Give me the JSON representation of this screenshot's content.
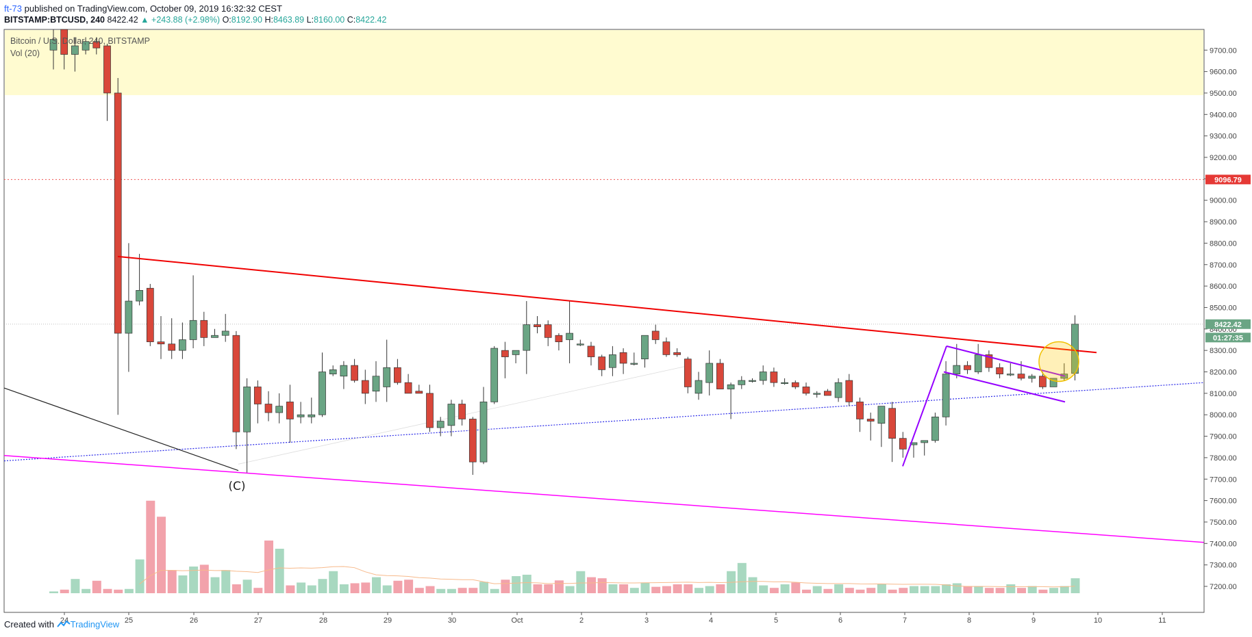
{
  "header": {
    "author": "ft-73",
    "published": " published on TradingView.com, October 09, 2019 16:32:32 CEST"
  },
  "quote": {
    "symbol": "BITSTAMP:BTCUSD, 240",
    "last": "8422.42",
    "change": "▲ +243.88 (+2.98%)",
    "o_label": "O:",
    "o": "8192.90",
    "h_label": "H:",
    "h": "8463.89",
    "l_label": "L:",
    "l": "8160.00",
    "c_label": "C:",
    "c": "8422.42"
  },
  "legend": {
    "title": "Bitcoin / U.S. Dollar, 240, BITSTAMP",
    "volume": "Vol (20)"
  },
  "footer": {
    "created": "Created with",
    "brand": "TradingView"
  },
  "colors": {
    "up": "#6aa584",
    "down": "#d9473a",
    "vol_up": "#a8d8c0",
    "vol_down": "#f2a2ab",
    "resistance_zone": "#fffbd0",
    "trend_red": "#f00000",
    "channel_magenta": "#ff00ff",
    "flag_purple": "#9500ff",
    "dotted_blue": "#2a2ae8"
  },
  "chart_data": {
    "type": "candlestick",
    "ylim": [
      7150,
      9800
    ],
    "y_ticks": [
      "7200.00",
      "7300.00",
      "7400.00",
      "7500.00",
      "7600.00",
      "7700.00",
      "7800.00",
      "7900.00",
      "8000.00",
      "8100.00",
      "8200.00",
      "8300.00",
      "8400.00",
      "8500.00",
      "8600.00",
      "8700.00",
      "8800.00",
      "8900.00",
      "9000.00",
      "9100.00",
      "9200.00",
      "9300.00",
      "9400.00",
      "9500.00",
      "9600.00",
      "9700.00"
    ],
    "x_ticks": [
      "24",
      "25",
      "26",
      "27",
      "28",
      "29",
      "30",
      "Oct",
      "2",
      "3",
      "4",
      "5",
      "6",
      "7",
      "8",
      "9",
      "10",
      "11"
    ],
    "price_labels": {
      "last": "8422.42",
      "countdown": "01:27:35",
      "alert": "9096.79"
    },
    "alert_level": 9096.79,
    "resistance_zone": [
      9490,
      9800
    ],
    "annotation": "(C)",
    "candles": [
      {
        "o": 9700,
        "h": 9830,
        "l": 9610,
        "c": 9750
      },
      {
        "o": 9820,
        "h": 9870,
        "l": 9610,
        "c": 9680
      },
      {
        "o": 9680,
        "h": 9760,
        "l": 9600,
        "c": 9720
      },
      {
        "o": 9700,
        "h": 9760,
        "l": 9680,
        "c": 9740
      },
      {
        "o": 9740,
        "h": 9760,
        "l": 9680,
        "c": 9710
      },
      {
        "o": 9720,
        "h": 9730,
        "l": 9370,
        "c": 9500
      },
      {
        "o": 9500,
        "h": 9570,
        "l": 8000,
        "c": 8380
      },
      {
        "o": 8380,
        "h": 8800,
        "l": 8200,
        "c": 8530
      },
      {
        "o": 8530,
        "h": 8750,
        "l": 8510,
        "c": 8580
      },
      {
        "o": 8590,
        "h": 8610,
        "l": 8320,
        "c": 8340
      },
      {
        "o": 8340,
        "h": 8460,
        "l": 8260,
        "c": 8330
      },
      {
        "o": 8330,
        "h": 8450,
        "l": 8260,
        "c": 8300
      },
      {
        "o": 8300,
        "h": 8430,
        "l": 8260,
        "c": 8350
      },
      {
        "o": 8350,
        "h": 8650,
        "l": 8310,
        "c": 8440
      },
      {
        "o": 8440,
        "h": 8480,
        "l": 8320,
        "c": 8360
      },
      {
        "o": 8360,
        "h": 8400,
        "l": 8360,
        "c": 8370
      },
      {
        "o": 8370,
        "h": 8470,
        "l": 8340,
        "c": 8390
      },
      {
        "o": 8370,
        "h": 8390,
        "l": 7840,
        "c": 7920
      },
      {
        "o": 7920,
        "h": 8170,
        "l": 7730,
        "c": 8130
      },
      {
        "o": 8130,
        "h": 8160,
        "l": 7960,
        "c": 8050
      },
      {
        "o": 8050,
        "h": 8110,
        "l": 7970,
        "c": 8010
      },
      {
        "o": 8010,
        "h": 8100,
        "l": 7960,
        "c": 8040
      },
      {
        "o": 8060,
        "h": 8140,
        "l": 7870,
        "c": 7980
      },
      {
        "o": 7990,
        "h": 8060,
        "l": 7960,
        "c": 8000
      },
      {
        "o": 7990,
        "h": 8080,
        "l": 7960,
        "c": 8000
      },
      {
        "o": 8000,
        "h": 8290,
        "l": 7990,
        "c": 8200
      },
      {
        "o": 8190,
        "h": 8230,
        "l": 8180,
        "c": 8210
      },
      {
        "o": 8180,
        "h": 8250,
        "l": 8120,
        "c": 8230
      },
      {
        "o": 8230,
        "h": 8260,
        "l": 8150,
        "c": 8160
      },
      {
        "o": 8160,
        "h": 8210,
        "l": 8050,
        "c": 8100
      },
      {
        "o": 8110,
        "h": 8250,
        "l": 8060,
        "c": 8180
      },
      {
        "o": 8130,
        "h": 8350,
        "l": 8060,
        "c": 8220
      },
      {
        "o": 8220,
        "h": 8260,
        "l": 8140,
        "c": 8150
      },
      {
        "o": 8150,
        "h": 8190,
        "l": 8100,
        "c": 8100
      },
      {
        "o": 8110,
        "h": 8140,
        "l": 8100,
        "c": 8100
      },
      {
        "o": 8100,
        "h": 8140,
        "l": 7920,
        "c": 7940
      },
      {
        "o": 7940,
        "h": 7990,
        "l": 7900,
        "c": 7970
      },
      {
        "o": 7950,
        "h": 8070,
        "l": 7900,
        "c": 8050
      },
      {
        "o": 8050,
        "h": 8070,
        "l": 7950,
        "c": 7980
      },
      {
        "o": 7980,
        "h": 7990,
        "l": 7720,
        "c": 7780
      },
      {
        "o": 7780,
        "h": 8130,
        "l": 7770,
        "c": 8060
      },
      {
        "o": 8060,
        "h": 8320,
        "l": 8050,
        "c": 8310
      },
      {
        "o": 8300,
        "h": 8340,
        "l": 8170,
        "c": 8270
      },
      {
        "o": 8280,
        "h": 8300,
        "l": 8240,
        "c": 8300
      },
      {
        "o": 8300,
        "h": 8530,
        "l": 8190,
        "c": 8420
      },
      {
        "o": 8420,
        "h": 8460,
        "l": 8380,
        "c": 8410
      },
      {
        "o": 8420,
        "h": 8440,
        "l": 8320,
        "c": 8360
      },
      {
        "o": 8370,
        "h": 8380,
        "l": 8300,
        "c": 8340
      },
      {
        "o": 8350,
        "h": 8530,
        "l": 8240,
        "c": 8380
      },
      {
        "o": 8330,
        "h": 8350,
        "l": 8320,
        "c": 8330
      },
      {
        "o": 8320,
        "h": 8340,
        "l": 8230,
        "c": 8270
      },
      {
        "o": 8270,
        "h": 8280,
        "l": 8180,
        "c": 8210
      },
      {
        "o": 8220,
        "h": 8320,
        "l": 8180,
        "c": 8280
      },
      {
        "o": 8290,
        "h": 8310,
        "l": 8190,
        "c": 8240
      },
      {
        "o": 8240,
        "h": 8290,
        "l": 8230,
        "c": 8240
      },
      {
        "o": 8260,
        "h": 8360,
        "l": 8220,
        "c": 8370
      },
      {
        "o": 8390,
        "h": 8420,
        "l": 8330,
        "c": 8350
      },
      {
        "o": 8340,
        "h": 8360,
        "l": 8270,
        "c": 8280
      },
      {
        "o": 8290,
        "h": 8310,
        "l": 8270,
        "c": 8280
      },
      {
        "o": 8260,
        "h": 8270,
        "l": 8100,
        "c": 8130
      },
      {
        "o": 8100,
        "h": 8200,
        "l": 8070,
        "c": 8160
      },
      {
        "o": 8150,
        "h": 8300,
        "l": 8090,
        "c": 8240
      },
      {
        "o": 8240,
        "h": 8260,
        "l": 8120,
        "c": 8120
      },
      {
        "o": 8120,
        "h": 8150,
        "l": 7980,
        "c": 8140
      },
      {
        "o": 8140,
        "h": 8180,
        "l": 8120,
        "c": 8160
      },
      {
        "o": 8160,
        "h": 8170,
        "l": 8150,
        "c": 8160
      },
      {
        "o": 8160,
        "h": 8230,
        "l": 8140,
        "c": 8200
      },
      {
        "o": 8200,
        "h": 8220,
        "l": 8130,
        "c": 8150
      },
      {
        "o": 8150,
        "h": 8170,
        "l": 8140,
        "c": 8150
      },
      {
        "o": 8150,
        "h": 8160,
        "l": 8120,
        "c": 8130
      },
      {
        "o": 8130,
        "h": 8150,
        "l": 8090,
        "c": 8100
      },
      {
        "o": 8100,
        "h": 8110,
        "l": 8080,
        "c": 8100
      },
      {
        "o": 8110,
        "h": 8120,
        "l": 8090,
        "c": 8090
      },
      {
        "o": 8080,
        "h": 8170,
        "l": 8060,
        "c": 8150
      },
      {
        "o": 8160,
        "h": 8190,
        "l": 8040,
        "c": 8060
      },
      {
        "o": 8060,
        "h": 8080,
        "l": 7920,
        "c": 7980
      },
      {
        "o": 7980,
        "h": 8010,
        "l": 7880,
        "c": 7970
      },
      {
        "o": 7960,
        "h": 8030,
        "l": 7850,
        "c": 8040
      },
      {
        "o": 8030,
        "h": 8060,
        "l": 7780,
        "c": 7890
      },
      {
        "o": 7890,
        "h": 7920,
        "l": 7800,
        "c": 7840
      },
      {
        "o": 7860,
        "h": 7870,
        "l": 7800,
        "c": 7870
      },
      {
        "o": 7870,
        "h": 7880,
        "l": 7810,
        "c": 7880
      },
      {
        "o": 7880,
        "h": 8010,
        "l": 7870,
        "c": 7990
      },
      {
        "o": 7990,
        "h": 8250,
        "l": 7950,
        "c": 8190
      },
      {
        "o": 8190,
        "h": 8330,
        "l": 8170,
        "c": 8230
      },
      {
        "o": 8230,
        "h": 8250,
        "l": 8190,
        "c": 8210
      },
      {
        "o": 8200,
        "h": 8330,
        "l": 8190,
        "c": 8280
      },
      {
        "o": 8280,
        "h": 8300,
        "l": 8200,
        "c": 8220
      },
      {
        "o": 8220,
        "h": 8240,
        "l": 8170,
        "c": 8190
      },
      {
        "o": 8190,
        "h": 8240,
        "l": 8180,
        "c": 8190
      },
      {
        "o": 8190,
        "h": 8250,
        "l": 8160,
        "c": 8170
      },
      {
        "o": 8170,
        "h": 8190,
        "l": 8150,
        "c": 8180
      },
      {
        "o": 8180,
        "h": 8200,
        "l": 8120,
        "c": 8130
      },
      {
        "o": 8130,
        "h": 8170,
        "l": 8130,
        "c": 8170
      },
      {
        "o": 8170,
        "h": 8240,
        "l": 8160,
        "c": 8190
      },
      {
        "o": 8192.9,
        "h": 8463.89,
        "l": 8160,
        "c": 8422.42
      }
    ],
    "volume": [
      5,
      10,
      40,
      12,
      35,
      12,
      10,
      12,
      95,
      260,
      215,
      65,
      50,
      75,
      80,
      45,
      65,
      25,
      38,
      15,
      148,
      125,
      22,
      30,
      22,
      40,
      62,
      25,
      28,
      30,
      45,
      22,
      35,
      38,
      15,
      20,
      12,
      12,
      15,
      15,
      32,
      12,
      38,
      48,
      52,
      25,
      25,
      36,
      20,
      62,
      45,
      42,
      25,
      25,
      15,
      30,
      18,
      20,
      25,
      25,
      15,
      20,
      25,
      62,
      85,
      45,
      22,
      15,
      25,
      30,
      10,
      20,
      12,
      25,
      15,
      10,
      15,
      25,
      10,
      15,
      20,
      20,
      20,
      25,
      28,
      20,
      20,
      15,
      15,
      25,
      15,
      20,
      10,
      15,
      20,
      42
    ]
  }
}
